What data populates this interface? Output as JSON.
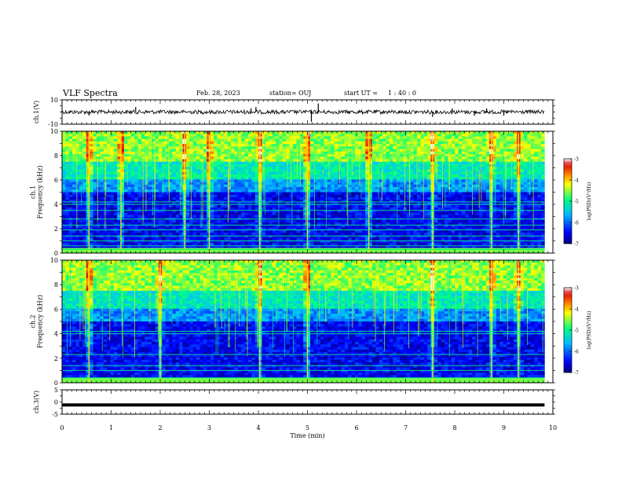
{
  "header": {
    "title": "VLF Spectra",
    "date": "Feb. 28, 2023",
    "station": "station= OUJ",
    "start_label": "start  UT =",
    "start_time": "1 : 40 : 0"
  },
  "colors": {
    "colormap": [
      "#00007f",
      "#0000ff",
      "#00bfff",
      "#00ff80",
      "#ffff00",
      "#ff8000",
      "#e00000",
      "#ffffff"
    ],
    "trace": "#000000",
    "frame": "#000000"
  },
  "chart_data": [
    {
      "type": "line",
      "id": "ch1_waveform",
      "ylabel": "ch.1(V)",
      "ylim": [
        -10,
        10
      ],
      "yticks": [
        10,
        -10
      ],
      "xlim": [
        0,
        10
      ],
      "series": [
        {
          "x": [
            0,
            9.83
          ],
          "y": [
            0,
            0
          ]
        }
      ],
      "impulses": [
        {
          "x": 0.55,
          "y": -3
        },
        {
          "x": 1.5,
          "y": 4
        },
        {
          "x": 3.85,
          "y": 3
        },
        {
          "x": 3.95,
          "y": 4
        },
        {
          "x": 5.08,
          "y": -8
        },
        {
          "x": 5.22,
          "y": 7
        },
        {
          "x": 7.55,
          "y": -4
        },
        {
          "x": 7.95,
          "y": 3
        },
        {
          "x": 8.4,
          "y": -3
        },
        {
          "x": 8.65,
          "y": 3
        },
        {
          "x": 9.0,
          "y": -3
        }
      ]
    },
    {
      "type": "heatmap",
      "id": "ch1_spectrogram",
      "ylabel": "ch.1\nFrequency (kHz)",
      "ylim": [
        0,
        10
      ],
      "yticks": [
        0,
        2,
        4,
        6,
        8,
        10
      ],
      "xlim": [
        0,
        10
      ],
      "data_xmax": 9.83,
      "colorbar": {
        "label": "log(PSD)(V²/Hz)",
        "range": [
          -7,
          -3
        ],
        "ticks": [
          -3,
          -4,
          -5,
          -6,
          -7
        ]
      },
      "bands_khz": [
        0.3,
        0.6,
        1.0,
        1.4,
        1.9,
        2.3,
        2.8,
        3.5,
        4.0,
        4.2
      ],
      "strong_bursts_min": [
        0.55,
        1.2,
        2.5,
        3.0,
        4.03,
        5.0,
        6.25,
        7.55,
        8.75,
        9.3
      ]
    },
    {
      "type": "heatmap",
      "id": "ch2_spectrogram",
      "ylabel": "ch.2\nFrequency (kHz)",
      "ylim": [
        0,
        10
      ],
      "yticks": [
        0,
        2,
        4,
        6,
        8,
        10
      ],
      "xlim": [
        0,
        10
      ],
      "data_xmax": 9.83,
      "colorbar": {
        "label": "log(PSD)(V²/Hz)",
        "range": [
          -7,
          -3
        ],
        "ticks": [
          -3,
          -4,
          -5,
          -6,
          -7
        ]
      },
      "bands_khz": [
        0.4,
        1.0,
        1.4,
        2.3,
        4.0,
        4.2
      ],
      "strong_bursts_min": [
        0.55,
        2.0,
        4.03,
        5.0,
        7.55,
        8.75,
        9.3
      ]
    },
    {
      "type": "line",
      "id": "ch3_waveform",
      "ylabel": "ch.3(V)",
      "ylim": [
        -5,
        5
      ],
      "yticks": [
        5,
        0,
        -5
      ],
      "xlim": [
        0,
        10
      ],
      "series": [
        {
          "x": [
            0,
            9.83
          ],
          "y": [
            -1.2,
            -1.2
          ]
        }
      ],
      "xlabel": "Time  (min)",
      "xticks": [
        0,
        1,
        2,
        3,
        4,
        5,
        6,
        7,
        8,
        9,
        10
      ]
    }
  ]
}
